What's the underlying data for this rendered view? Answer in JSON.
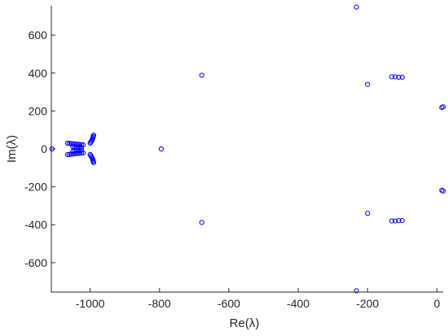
{
  "chart_data": {
    "type": "scatter",
    "title": "",
    "xlabel": "Re(λ)",
    "ylabel": "Im(λ)",
    "xlim": [
      -1112,
      18
    ],
    "ylim": [
      -755,
      755
    ],
    "xticks": [
      -1000,
      -800,
      -600,
      -400,
      -200,
      0
    ],
    "xtick_labels": [
      "-1000",
      "-800",
      "-600",
      "-400",
      "-200",
      "0"
    ],
    "yticks": [
      -600,
      -400,
      -200,
      0,
      200,
      400,
      600
    ],
    "ytick_labels": [
      "-600",
      "-400",
      "-200",
      "0",
      "200",
      "400",
      "600"
    ],
    "grid": false,
    "legend": "none",
    "marker": "open-circle",
    "marker_color": "#0000FF",
    "series": [
      {
        "values": [
          [
            -1110,
            0
          ],
          [
            -1065,
            30
          ],
          [
            -1060,
            29
          ],
          [
            -1055,
            28
          ],
          [
            -1050,
            27
          ],
          [
            -1045,
            26
          ],
          [
            -1040,
            25
          ],
          [
            -1035,
            24
          ],
          [
            -1030,
            23
          ],
          [
            -1025,
            22
          ],
          [
            -1020,
            21
          ],
          [
            -1065,
            -30
          ],
          [
            -1060,
            -29
          ],
          [
            -1055,
            -28
          ],
          [
            -1050,
            -27
          ],
          [
            -1045,
            -26
          ],
          [
            -1040,
            -25
          ],
          [
            -1035,
            -24
          ],
          [
            -1030,
            -23
          ],
          [
            -1025,
            -22
          ],
          [
            -1020,
            -21
          ],
          [
            -1050,
            12
          ],
          [
            -1045,
            11
          ],
          [
            -1040,
            10
          ],
          [
            -1035,
            9
          ],
          [
            -1030,
            8
          ],
          [
            -1025,
            7
          ],
          [
            -1050,
            -12
          ],
          [
            -1045,
            -11
          ],
          [
            -1040,
            -10
          ],
          [
            -1035,
            -9
          ],
          [
            -1030,
            -8
          ],
          [
            -1025,
            -7
          ],
          [
            -1000,
            30
          ],
          [
            -998,
            36
          ],
          [
            -996,
            42
          ],
          [
            -994,
            48
          ],
          [
            -993,
            54
          ],
          [
            -992,
            60
          ],
          [
            -991,
            66
          ],
          [
            -990,
            72
          ],
          [
            -1000,
            -30
          ],
          [
            -998,
            -36
          ],
          [
            -996,
            -42
          ],
          [
            -994,
            -48
          ],
          [
            -993,
            -54
          ],
          [
            -992,
            -60
          ],
          [
            -991,
            -66
          ],
          [
            -990,
            -72
          ],
          [
            -795,
            0
          ],
          [
            -678,
            388
          ],
          [
            -678,
            -388
          ],
          [
            -200,
            340
          ],
          [
            -200,
            -340
          ],
          [
            -232,
            748
          ],
          [
            -232,
            -748
          ],
          [
            -130,
            380
          ],
          [
            -120,
            380
          ],
          [
            -110,
            378
          ],
          [
            -100,
            378
          ],
          [
            -130,
            -380
          ],
          [
            -120,
            -380
          ],
          [
            -110,
            -378
          ],
          [
            -100,
            -378
          ],
          [
            14,
            218
          ],
          [
            18,
            222
          ],
          [
            14,
            -218
          ],
          [
            18,
            -222
          ]
        ]
      }
    ]
  }
}
